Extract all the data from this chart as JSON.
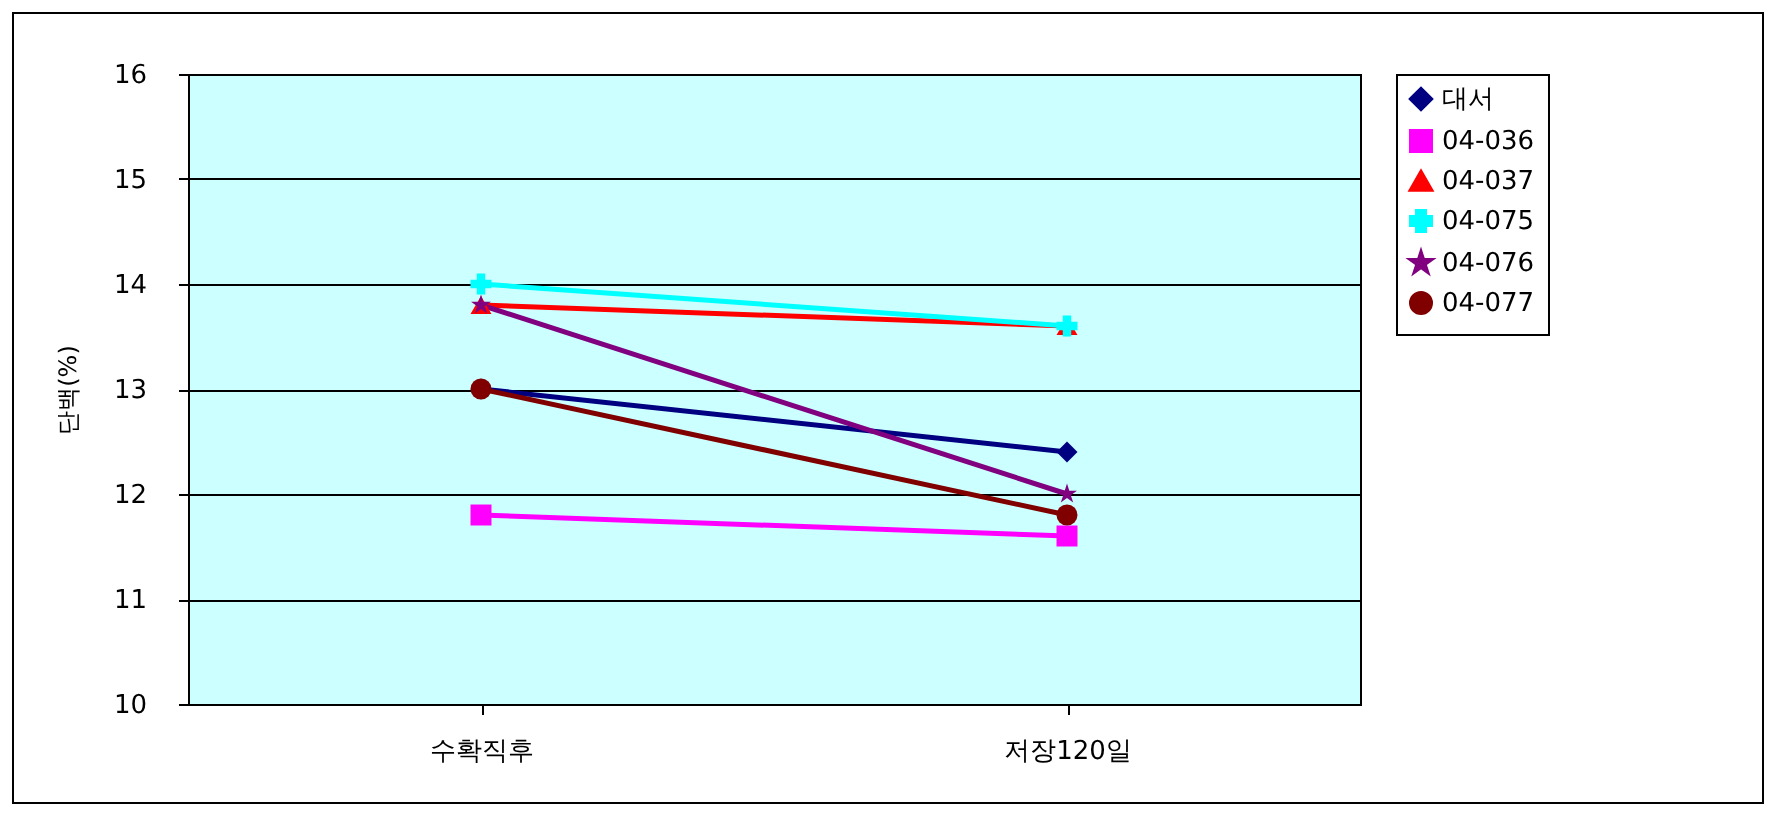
{
  "chart_data": {
    "type": "line",
    "ylabel": "단백(%)",
    "categories": [
      "수확직후",
      "저장120일"
    ],
    "ylim": [
      10,
      16
    ],
    "yticks": [
      10,
      11,
      12,
      13,
      14,
      15,
      16
    ],
    "grid": "y",
    "legend": "right",
    "series": [
      {
        "name": "대서",
        "color": "#000080",
        "marker": "diamond",
        "values": [
          13.0,
          12.4
        ]
      },
      {
        "name": "04-036",
        "color": "#ff00ff",
        "marker": "square",
        "values": [
          11.8,
          11.6
        ]
      },
      {
        "name": "04-037",
        "color": "#ff0000",
        "marker": "triangle",
        "values": [
          13.8,
          13.6
        ]
      },
      {
        "name": "04-075",
        "color": "#00ffff",
        "marker": "cross",
        "values": [
          14.0,
          13.6
        ]
      },
      {
        "name": "04-076",
        "color": "#800080",
        "marker": "star",
        "values": [
          13.8,
          12.0
        ]
      },
      {
        "name": "04-077",
        "color": "#800000",
        "marker": "circle",
        "values": [
          13.0,
          11.8
        ]
      }
    ]
  }
}
